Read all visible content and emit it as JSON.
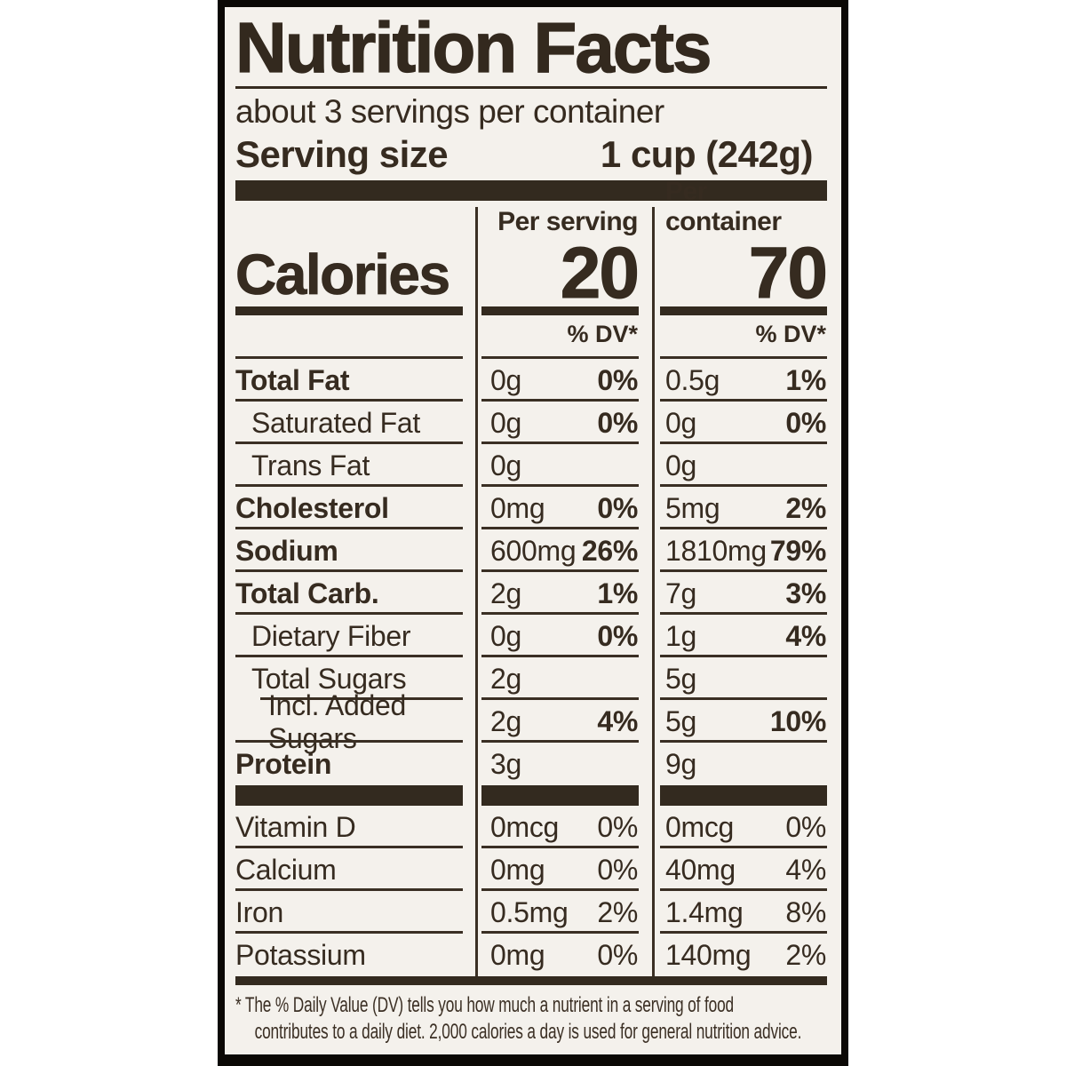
{
  "label": {
    "title": "Nutrition Facts",
    "servings_per_container": "about 3 servings per container",
    "serving_size_label": "Serving size",
    "serving_size_value": "1 cup (242g)",
    "columns": {
      "per_serving": "Per serving",
      "per_container": "Per container"
    },
    "calories": {
      "label": "Calories",
      "per_serving": "20",
      "per_container": "70"
    },
    "dv_header": "% DV*",
    "nutrients": [
      {
        "name": "Total Fat",
        "ps_amount": "0g",
        "ps_dv": "0%",
        "pc_amount": "0.5g",
        "pc_dv": "1%"
      },
      {
        "name": "Saturated Fat",
        "ps_amount": "0g",
        "ps_dv": "0%",
        "pc_amount": "0g",
        "pc_dv": "0%"
      },
      {
        "name": "Trans Fat",
        "ps_amount": "0g",
        "ps_dv": "",
        "pc_amount": "0g",
        "pc_dv": ""
      },
      {
        "name": "Cholesterol",
        "ps_amount": "0mg",
        "ps_dv": "0%",
        "pc_amount": "5mg",
        "pc_dv": "2%"
      },
      {
        "name": "Sodium",
        "ps_amount": "600mg",
        "ps_dv": "26%",
        "pc_amount": "1810mg",
        "pc_dv": "79%"
      },
      {
        "name": "Total Carb.",
        "ps_amount": "2g",
        "ps_dv": "1%",
        "pc_amount": "7g",
        "pc_dv": "3%"
      },
      {
        "name": "Dietary Fiber",
        "ps_amount": "0g",
        "ps_dv": "0%",
        "pc_amount": "1g",
        "pc_dv": "4%"
      },
      {
        "name": "Total Sugars",
        "ps_amount": "2g",
        "ps_dv": "",
        "pc_amount": "5g",
        "pc_dv": ""
      },
      {
        "name": "Incl. Added Sugars",
        "ps_amount": "2g",
        "ps_dv": "4%",
        "pc_amount": "5g",
        "pc_dv": "10%"
      },
      {
        "name": "Protein",
        "ps_amount": "3g",
        "ps_dv": "",
        "pc_amount": "9g",
        "pc_dv": ""
      }
    ],
    "vitamins": [
      {
        "name": "Vitamin D",
        "ps_amount": "0mcg",
        "ps_dv": "0%",
        "pc_amount": "0mcg",
        "pc_dv": "0%"
      },
      {
        "name": "Calcium",
        "ps_amount": "0mg",
        "ps_dv": "0%",
        "pc_amount": "40mg",
        "pc_dv": "4%"
      },
      {
        "name": "Iron",
        "ps_amount": "0.5mg",
        "ps_dv": "2%",
        "pc_amount": "1.4mg",
        "pc_dv": "8%"
      },
      {
        "name": "Potassium",
        "ps_amount": "0mg",
        "ps_dv": "0%",
        "pc_amount": "140mg",
        "pc_dv": "2%"
      }
    ],
    "footnote_line1": "* The % Daily Value (DV) tells you how much a nutrient in a serving of food",
    "footnote_line2": "contributes to a daily diet. 2,000 calories a day is used for general nutrition advice.",
    "colors": {
      "paper": "#f4f1ec",
      "ink": "#362b20",
      "border": "#0b0805",
      "page_bg": "#ffffff"
    }
  }
}
